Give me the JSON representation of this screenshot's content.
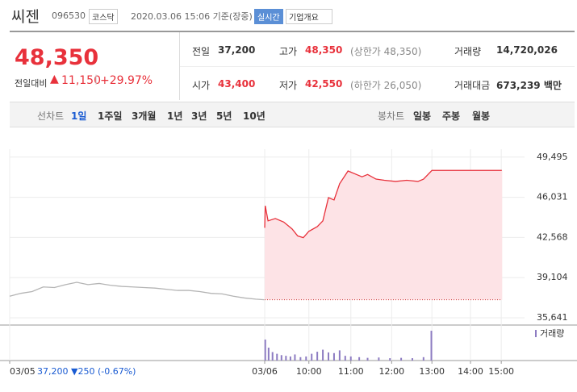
{
  "header": {
    "name": "씨젠",
    "code": "096530",
    "market": "코스닥",
    "timestamp": "2020.03.06 15:06 기준(장중)",
    "realtime": "실시간",
    "menu": "기업개요"
  },
  "quote": {
    "price": "48,350",
    "change_label": "전일대비",
    "change": "11,150",
    "change_pct": "+29.97%",
    "stats": [
      {
        "label": "전일",
        "value": "37,200"
      },
      {
        "label": "고가",
        "value": "48,350",
        "note": "(상한가 48,350)"
      },
      {
        "label": "거래량",
        "value": "14,720,026"
      },
      {
        "label": "시가",
        "value": "43,400"
      },
      {
        "label": "저가",
        "value": "42,550",
        "note": "(하한가 26,050)"
      },
      {
        "label": "거래대금",
        "value": "673,239 백만"
      }
    ]
  },
  "tabs": {
    "line_label": "선차트",
    "line": [
      "1일",
      "1주일",
      "3개월",
      "1년",
      "3년",
      "5년",
      "10년"
    ],
    "candle_label": "봉차트",
    "candle": [
      "일봉",
      "주봉",
      "월봉"
    ]
  },
  "chart_data": {
    "type": "line",
    "xlim": [
      0,
      100
    ],
    "ylim": [
      35224,
      51220
    ],
    "yticks": [
      {
        "value": 35641,
        "label": "35,641"
      },
      {
        "value": 39104,
        "label": "39,104"
      },
      {
        "value": 42568,
        "label": "42,568"
      },
      {
        "value": 46031,
        "label": "46,031"
      },
      {
        "value": 49495,
        "label": "49,495"
      }
    ],
    "xticks": [
      {
        "value": 0,
        "label": "03/05"
      },
      {
        "value": 45.6,
        "label": "03/06"
      },
      {
        "value": 53.5,
        "label": "10:00"
      },
      {
        "value": 61.0,
        "label": "11:00"
      },
      {
        "value": 68.3,
        "label": "12:00"
      },
      {
        "value": 75.5,
        "label": "13:00"
      },
      {
        "value": 82.4,
        "label": "14:00"
      },
      {
        "value": 87.9,
        "label": "15:00"
      }
    ],
    "grid": true,
    "baseline": 37200,
    "series": [
      {
        "color": "#b4b4b4",
        "x": [
          0,
          2,
          4,
          6,
          8,
          10,
          12,
          14,
          16,
          18,
          20,
          22,
          24,
          26,
          28,
          30,
          32,
          34,
          36,
          38,
          40,
          42,
          44,
          45.5
        ],
        "values": [
          37500,
          37750,
          37900,
          38300,
          38250,
          38500,
          38700,
          38500,
          38600,
          38450,
          38350,
          38300,
          38250,
          38200,
          38100,
          38000,
          38000,
          37900,
          37750,
          37700,
          37500,
          37350,
          37250,
          37200
        ]
      },
      {
        "color": "#e8313b",
        "fill": "#fde3e6",
        "x": [
          45.6,
          45.7,
          46.2,
          47.5,
          49,
          50.5,
          51.5,
          52.5,
          53.5,
          55,
          56,
          57,
          58,
          59,
          60.5,
          62,
          63,
          64,
          65.5,
          67,
          69,
          71,
          73,
          74,
          75.5,
          88
        ],
        "values": [
          43400,
          45300,
          44000,
          44200,
          43900,
          43300,
          42700,
          42550,
          43100,
          43500,
          44000,
          46000,
          45800,
          47200,
          48300,
          48000,
          47800,
          48000,
          47600,
          47500,
          47400,
          47500,
          47400,
          47600,
          48350,
          48350
        ]
      }
    ],
    "volume": {
      "name": "거래량",
      "color": "#8d7cc2",
      "ylim": [
        0,
        100
      ],
      "x": [
        45.7,
        46.3,
        47,
        47.8,
        48.6,
        49.4,
        50.2,
        51,
        52,
        53,
        54,
        55,
        56,
        57,
        58,
        59,
        60,
        61,
        62.5,
        64,
        66,
        68,
        70,
        72,
        74,
        75.4
      ],
      "values": [
        62,
        38,
        25,
        20,
        16,
        14,
        12,
        18,
        10,
        12,
        20,
        26,
        32,
        24,
        22,
        30,
        14,
        12,
        10,
        8,
        9,
        7,
        8,
        7,
        10,
        88
      ]
    }
  },
  "footer": {
    "prev": "37,200",
    "change": "▼250 (-0.67%)"
  }
}
